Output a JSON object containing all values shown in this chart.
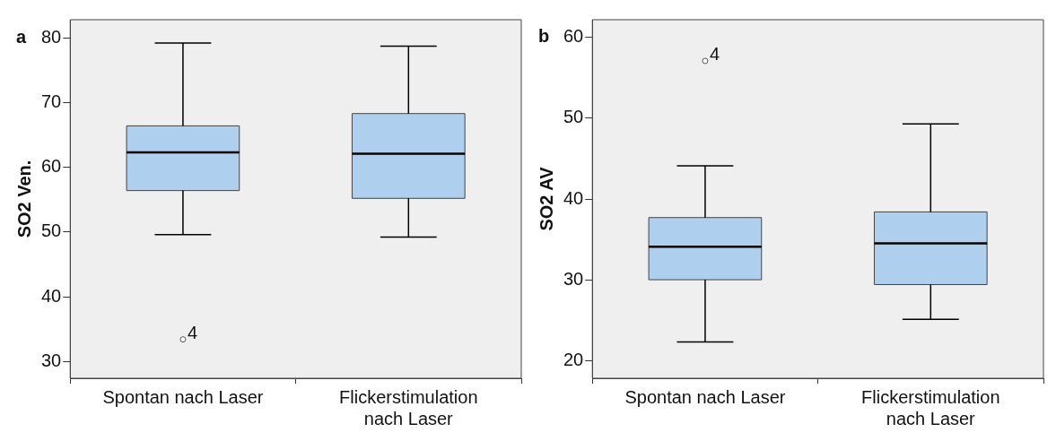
{
  "chart_data": [
    {
      "type": "box",
      "title": "a",
      "ylabel": "SO2 Ven.",
      "categories": [
        "Spontan nach Laser",
        "Flickerstimulation nach Laser"
      ],
      "ylim": [
        27.4,
        82.8
      ],
      "yticks": [
        30,
        40,
        50,
        60,
        70,
        80
      ],
      "series": [
        {
          "color": "#aecfee",
          "boxes": [
            {
              "low": 49.6,
              "q1": 56.4,
              "median": 62.3,
              "q3": 66.4,
              "high": 79.2,
              "outliers": [
                33.4
              ]
            },
            {
              "low": 49.2,
              "q1": 55.2,
              "median": 62.1,
              "q3": 68.3,
              "high": 78.7
            }
          ]
        }
      ],
      "annotations": [
        "4"
      ]
    },
    {
      "type": "box",
      "title": "b",
      "ylabel": "SO2 AV",
      "categories": [
        "Spontan nach Laser",
        "Flickerstimulation nach Laser"
      ],
      "ylim": [
        17.8,
        62.2
      ],
      "yticks": [
        20,
        30,
        40,
        50,
        60
      ],
      "series": [
        {
          "color": "#aecfee",
          "boxes": [
            {
              "low": 22.3,
              "q1": 30.0,
              "median": 34.1,
              "q3": 37.7,
              "high": 44.1,
              "outliers": [
                57.1
              ]
            },
            {
              "low": 25.1,
              "q1": 29.4,
              "median": 34.5,
              "q3": 38.4,
              "high": 49.3
            }
          ]
        }
      ],
      "annotations": [
        "4"
      ]
    }
  ]
}
